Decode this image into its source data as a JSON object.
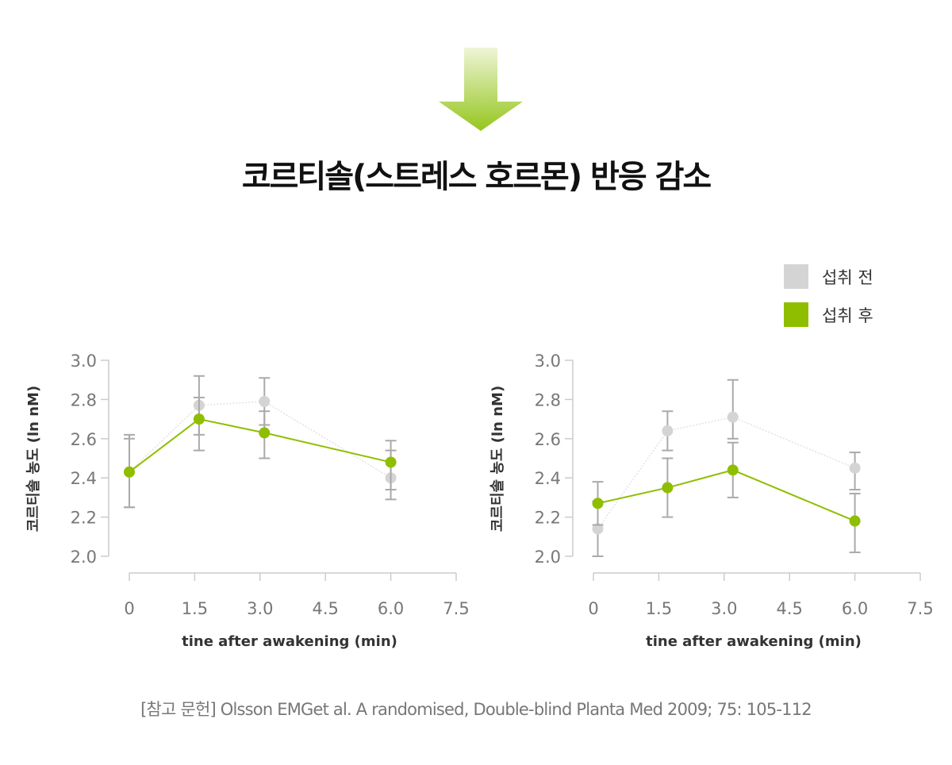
{
  "title": "코르티솔(스트레스 호르몬) 반응 감소",
  "icon": "down-arrow-icon",
  "colors": {
    "before": "#d4d4d4",
    "after": "#8fbe00",
    "error_bar": "#aaaaaa",
    "arrow_top": "#eef5d6",
    "arrow_bottom": "#95c61e"
  },
  "legend": [
    {
      "label": "섭취 전",
      "color": "#d4d4d4"
    },
    {
      "label": "섭취 후",
      "color": "#8fbe00"
    }
  ],
  "footnote": "[참고 문헌] Olsson EMGet al. A randomised, Double-blind Planta Med 2009; 75: 105-112",
  "chart_data": [
    {
      "type": "line",
      "xlabel": "tine after awakening (min)",
      "ylabel": "코르티솔 농도 (ln nM)",
      "xlim": [
        0,
        7.5
      ],
      "ylim": [
        2.0,
        3.0
      ],
      "xticks": [
        "0",
        "1.5",
        "3.0",
        "4.5",
        "6.0",
        "7.5"
      ],
      "yticks": [
        "3.0",
        "2.8",
        "2.6",
        "2.4",
        "2.2",
        "2.0"
      ],
      "grid": false,
      "legend": "top-right",
      "x": [
        0,
        1.6,
        3.1,
        6.0
      ],
      "series": [
        {
          "name": "섭취 전",
          "values": [
            2.43,
            2.77,
            2.79,
            2.4
          ],
          "err_low": [
            2.25,
            2.62,
            2.67,
            2.29
          ],
          "err_high": [
            2.6,
            2.92,
            2.91,
            2.54
          ]
        },
        {
          "name": "섭취 후",
          "values": [
            2.43,
            2.7,
            2.63,
            2.48
          ],
          "err_low": [
            2.25,
            2.54,
            2.5,
            2.34
          ],
          "err_high": [
            2.62,
            2.81,
            2.74,
            2.59
          ]
        }
      ]
    },
    {
      "type": "line",
      "xlabel": "tine after awakening (min)",
      "ylabel": "코르티솔 농도 (ln nM)",
      "xlim": [
        0,
        7.5
      ],
      "ylim": [
        2.0,
        3.0
      ],
      "xticks": [
        "0",
        "1.5",
        "3.0",
        "4.5",
        "6.0",
        "7.5"
      ],
      "yticks": [
        "3.0",
        "2.8",
        "2.6",
        "2.4",
        "2.2",
        "2.0"
      ],
      "grid": false,
      "legend": "top-right",
      "x": [
        0.1,
        1.7,
        3.2,
        6.0
      ],
      "series": [
        {
          "name": "섭취 전",
          "values": [
            2.14,
            2.64,
            2.71,
            2.45
          ],
          "err_low": [
            2.0,
            2.54,
            2.6,
            2.34
          ],
          "err_high": [
            2.28,
            2.74,
            2.9,
            2.53
          ]
        },
        {
          "name": "섭취 후",
          "values": [
            2.27,
            2.35,
            2.44,
            2.18
          ],
          "err_low": [
            2.16,
            2.2,
            2.3,
            2.02
          ],
          "err_high": [
            2.38,
            2.5,
            2.58,
            2.32
          ]
        }
      ]
    }
  ]
}
